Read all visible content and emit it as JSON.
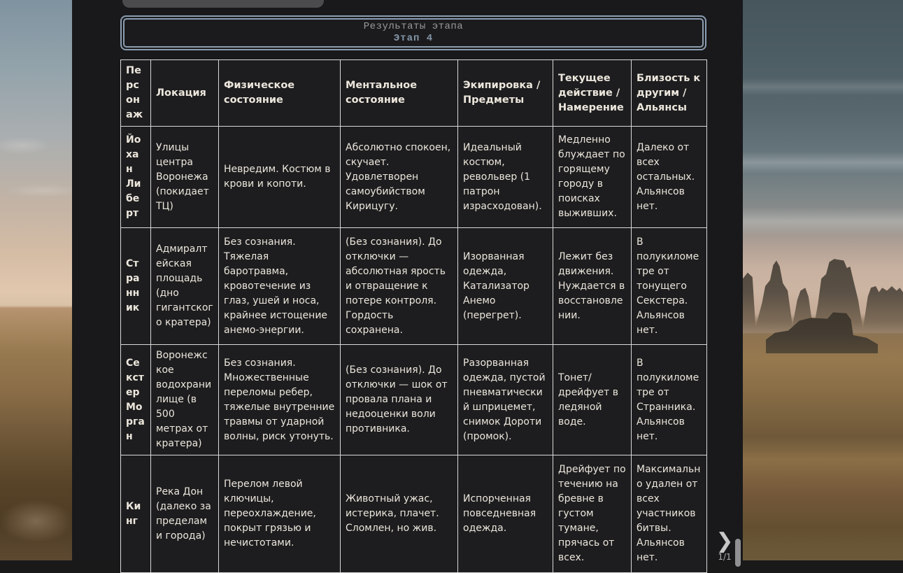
{
  "colors": {
    "accent_border": "#8b9db1",
    "table_border": "#d9d9d9",
    "panel_bg": "#19191b",
    "text": "#ece6dc"
  },
  "stage_panel": {
    "header": {
      "title": "Результаты этапа",
      "subtitle": "Этап 4"
    },
    "pager": {
      "next_glyph": "❯",
      "page_indicator": "1/1"
    }
  },
  "table": {
    "columns": [
      "Персонаж",
      "Локация",
      "Физическое состояние",
      "Ментальное состояние",
      "Экипировка / Предметы",
      "Текущее действие / Намерение",
      "Близость к другим / Альянсы"
    ],
    "rows": [
      {
        "character": "Йохан Либерт",
        "location": "Улицы центра Воронежа (покидает ТЦ)",
        "physical": "Невредим. Костюм в крови и копоти.",
        "mental": "Абсолютно спокоен, скучает. Удовлетворен самоубийством Кирицугу.",
        "equipment": "Идеальный костюм, револьвер (1 патрон израсходован).",
        "action": "Медленно блуждает по горящему городу в поисках выживших.",
        "proximity": "Далеко от всех остальных. Альянсов нет."
      },
      {
        "character": "Странник",
        "location": "Адмиралтейская площадь (дно гигантского кратера)",
        "physical": "Без сознания. Тяжелая баротравма, кровотечение из глаз, ушей и носа, крайнее истощение анемо-энергии.",
        "mental": "(Без сознания). До отключки — абсолютная ярость и отвращение к потере контроля. Гордость сохранена.",
        "equipment": "Изорванная одежда, Катализатор Анемо (перегрет).",
        "action": "Лежит без движения. Нуждается в восстановлении.",
        "proximity": "В полукилометре от тонущего Секстера. Альянсов нет."
      },
      {
        "character": "Секстер Морган",
        "location": "Воронежское водохранилище (в 500 метрах от кратера)",
        "physical": "Без сознания. Множественные переломы ребер, тяжелые внутренние травмы от ударной волны, риск утонуть.",
        "mental": "(Без сознания). До отключки — шок от провала плана и недооценки воли противника.",
        "equipment": "Разорванная одежда, пустой пневматический шприцемет, снимок Дороти (промок).",
        "action": "Тонет/ дрейфует в ледяной воде.",
        "proximity": "В полукилометре от Странника. Альянсов нет."
      },
      {
        "character": "Кинг",
        "location": "Река Дон (далеко за пределами города)",
        "physical": "Перелом левой ключицы, переохлаждение, покрыт грязью и нечистотами.",
        "mental": "Животный ужас, истерика, плачет. Сломлен, но жив.",
        "equipment": "Испорченная повседневная одежда.",
        "action": "Дрейфует по течению на бревне в густом тумане, прячась от всех.",
        "proximity": "Максимально удален от всех участников битвы. Альянсов нет."
      }
    ]
  }
}
